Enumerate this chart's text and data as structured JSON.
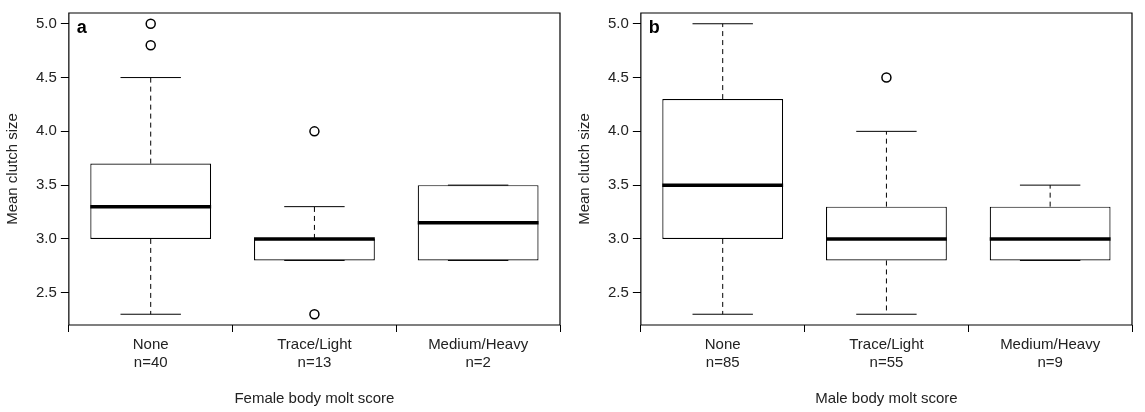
{
  "chart_data": [
    {
      "type": "box",
      "categories": [
        "None\nn=40",
        "Trace/Light\nn=13",
        "Medium/Heavy\nn=2"
      ],
      "xlabel": "Female body molt score",
      "ylabel": "Mean clutch size",
      "ylim": [
        2.2,
        5.1
      ],
      "yticks": [
        2.5,
        {
          "value": 3,
          "label": "3.0"
        },
        3.5,
        {
          "value": 4,
          "label": "4.0"
        },
        4.5,
        {
          "value": 5,
          "label": "5.0"
        }
      ],
      "annotations": [
        "a"
      ],
      "boxes": [
        {
          "low": 2.3,
          "q1": 3.0,
          "median": 3.3,
          "q3": 3.7,
          "high": 4.5,
          "outliers": [
            4.8,
            5.0
          ]
        },
        {
          "low": 2.8,
          "q1": 2.8,
          "median": 3.0,
          "q3": 3.0,
          "high": 3.3,
          "outliers": [
            4.0,
            2.3
          ]
        },
        {
          "low": 2.8,
          "q1": 2.8,
          "median": 3.15,
          "q3": 3.5,
          "high": 3.5
        }
      ]
    },
    {
      "type": "box",
      "categories": [
        "None\nn=85",
        "Trace/Light\nn=55",
        "Medium/Heavy\nn=9"
      ],
      "xlabel": "Male body molt score",
      "ylabel": "Mean clutch size",
      "ylim": [
        2.2,
        5.1
      ],
      "yticks": [
        2.5,
        {
          "value": 3,
          "label": "3.0"
        },
        3.5,
        {
          "value": 4,
          "label": "4.0"
        },
        4.5,
        {
          "value": 5,
          "label": "5.0"
        }
      ],
      "annotations": [
        "b"
      ],
      "boxes": [
        {
          "low": 2.3,
          "q1": 3.0,
          "median": 3.5,
          "q3": 4.3,
          "high": 5.0
        },
        {
          "low": 2.3,
          "q1": 2.8,
          "median": 3.0,
          "q3": 3.3,
          "high": 4.0,
          "outliers": [
            4.5
          ]
        },
        {
          "low": 2.8,
          "q1": 2.8,
          "median": 3.0,
          "q3": 3.3,
          "high": 3.5
        }
      ]
    }
  ]
}
